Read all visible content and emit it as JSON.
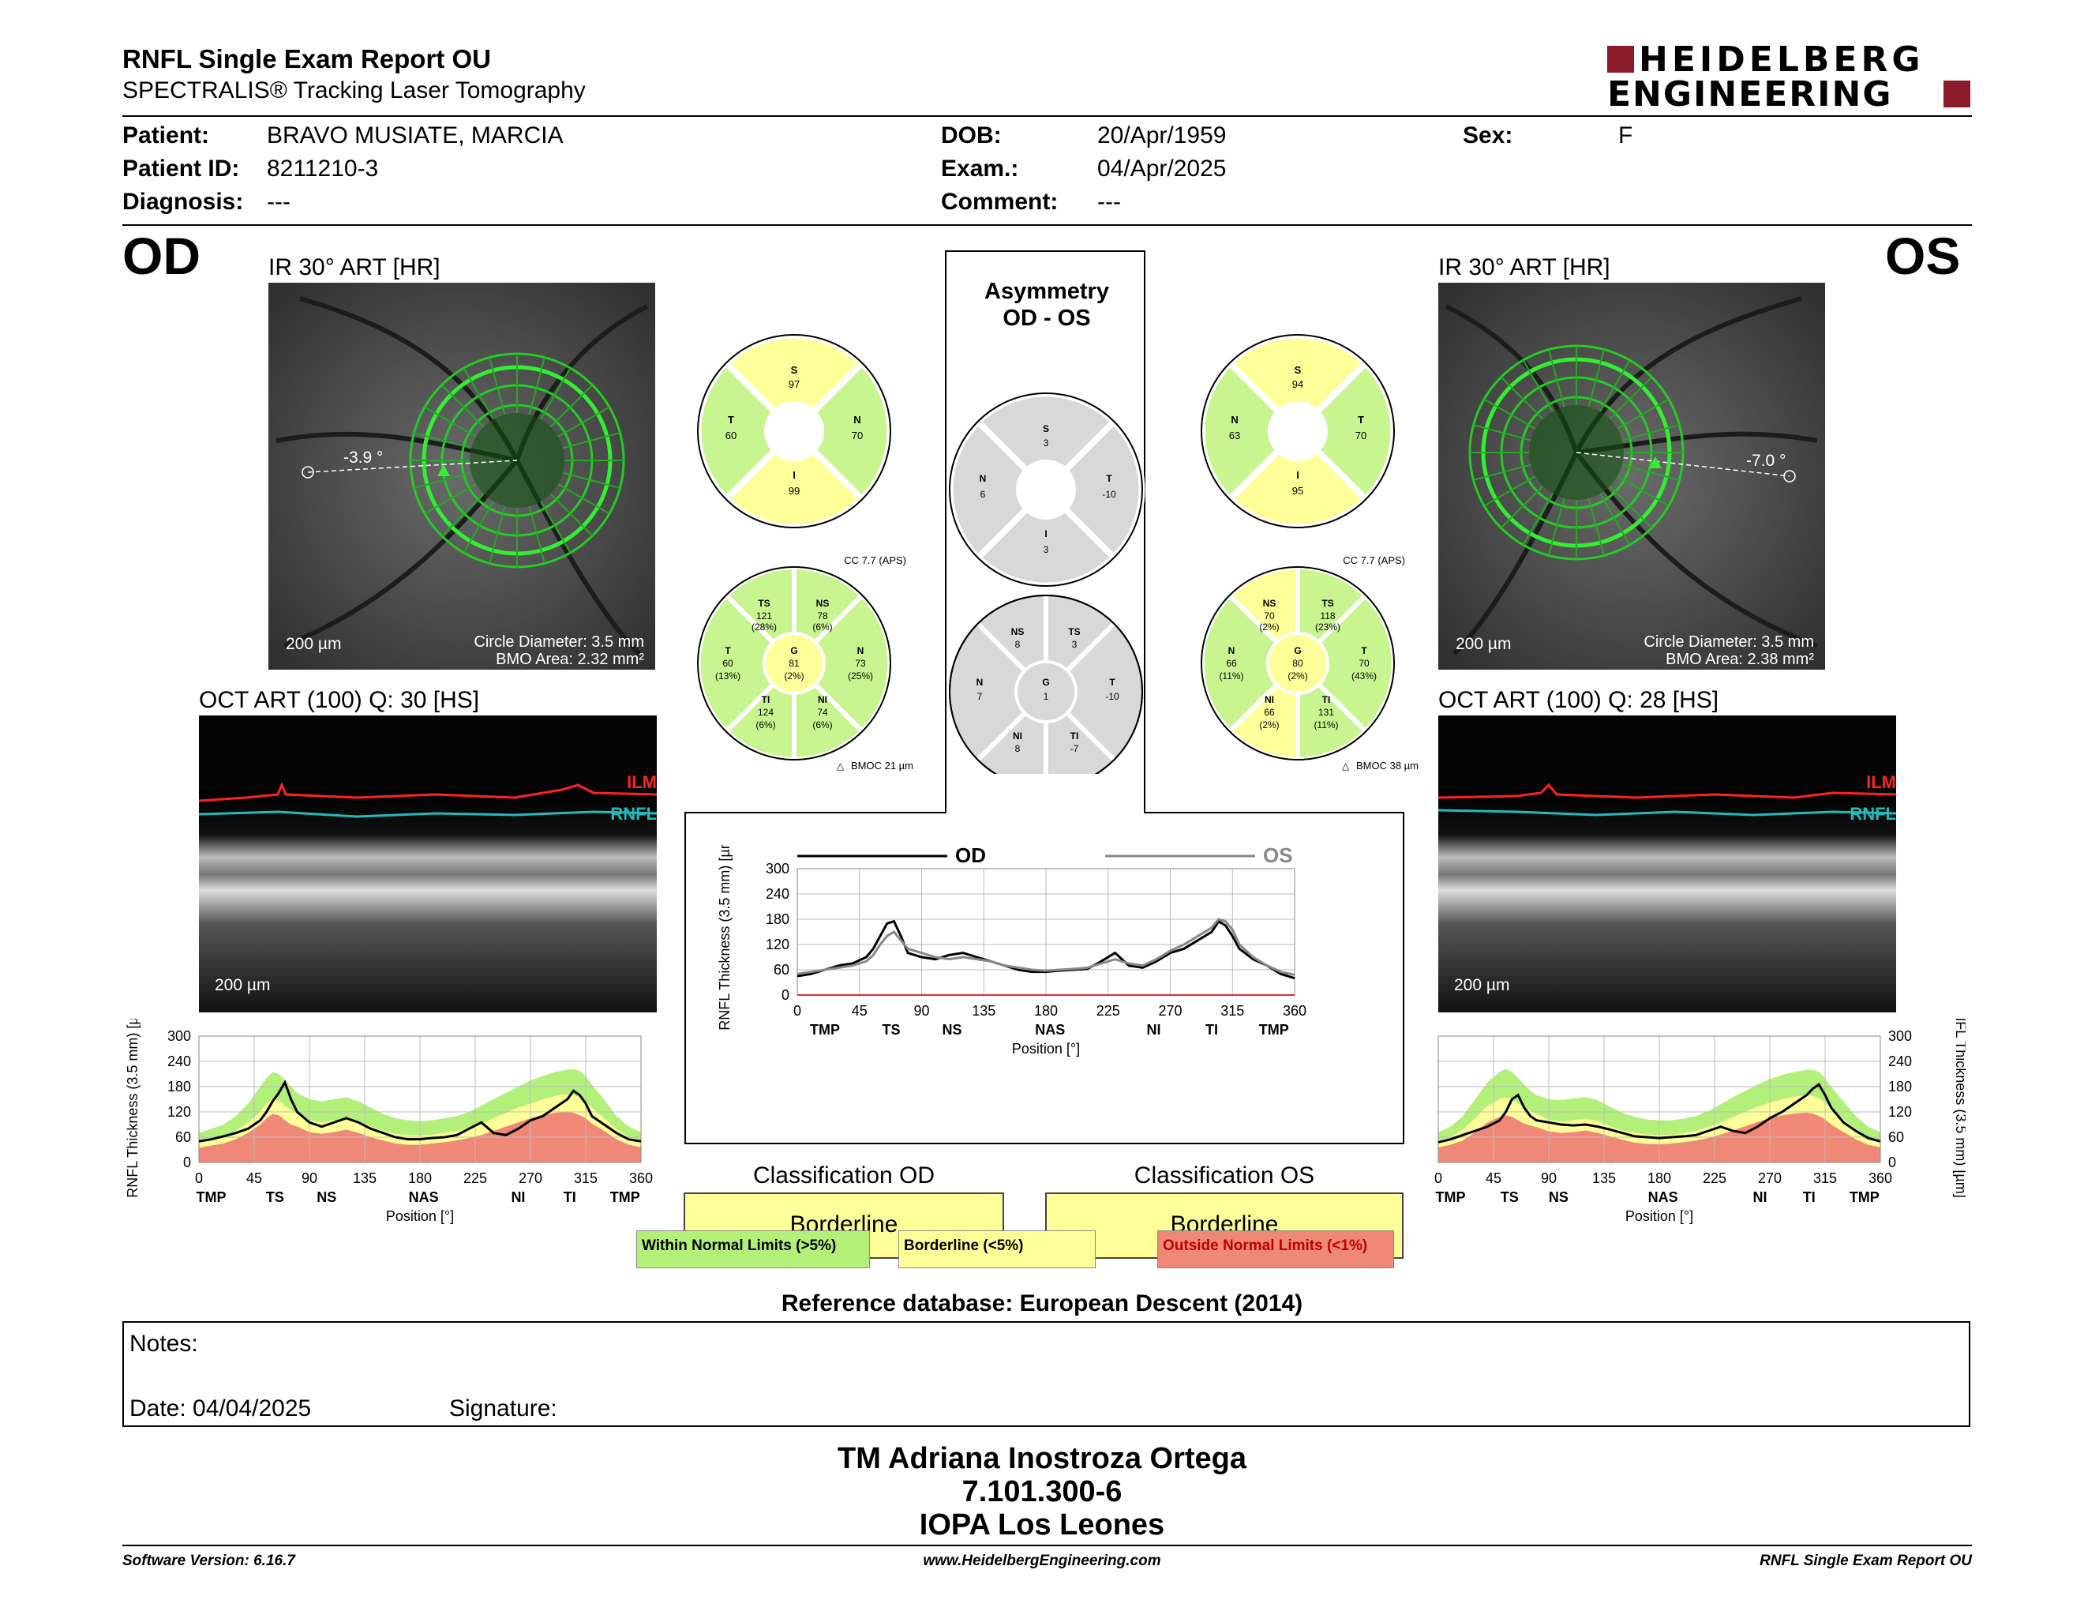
{
  "header": {
    "title": "RNFL Single Exam Report OU",
    "subtitle": "SPECTRALIS® Tracking Laser Tomography",
    "brand_line1": "HEIDELBERG",
    "brand_line2": "ENGINEERING",
    "brand_color": "#8b1a2b"
  },
  "patient": {
    "patient_label": "Patient:",
    "patient_value": "BRAVO MUSIATE, MARCIA",
    "id_label": "Patient ID:",
    "id_value": "8211210-3",
    "diag_label": "Diagnosis:",
    "diag_value": "---",
    "dob_label": "DOB:",
    "dob_value": "20/Apr/1959",
    "exam_label": "Exam.:",
    "exam_value": "04/Apr/2025",
    "comment_label": "Comment:",
    "comment_value": "---",
    "sex_label": "Sex:",
    "sex_value": "F"
  },
  "od": {
    "eye": "OD",
    "ir_title": "IR 30° ART [HR]",
    "angle": "-3.9 °",
    "circle_diameter": "Circle Diameter: 3.5 mm",
    "bmo_area": "BMO Area: 2.32 mm²",
    "scale": "200 µm",
    "oct_title": "OCT ART (100) Q: 30 [HS]",
    "ilm": "ILM",
    "rnfl": "RNFL",
    "quad": {
      "S": "97",
      "T": "60",
      "N": "70",
      "I": "99"
    },
    "cc": "CC 7.7 (APS)",
    "sectors": {
      "TS": [
        "121",
        "(28%)"
      ],
      "NS": [
        "78",
        "(6%)"
      ],
      "T": [
        "60",
        "(13%)"
      ],
      "G": [
        "81",
        "(2%)"
      ],
      "N": [
        "73",
        "(25%)"
      ],
      "TI": [
        "124",
        "(6%)"
      ],
      "NI": [
        "74",
        "(6%)"
      ]
    },
    "bmoc": "BMOC 21 µm"
  },
  "os": {
    "eye": "OS",
    "ir_title": "IR 30° ART [HR]",
    "angle": "-7.0 °",
    "circle_diameter": "Circle Diameter: 3.5 mm",
    "bmo_area": "BMO Area: 2.38 mm²",
    "scale": "200 µm",
    "oct_title": "OCT ART (100) Q: 28 [HS]",
    "ilm": "ILM",
    "rnfl": "RNFL",
    "quad": {
      "S": "94",
      "N": "63",
      "T": "70",
      "I": "95"
    },
    "cc": "CC 7.7 (APS)",
    "sectors": {
      "NS": [
        "70",
        "(2%)"
      ],
      "TS": [
        "118",
        "(23%)"
      ],
      "N": [
        "66",
        "(11%)"
      ],
      "G": [
        "80",
        "(2%)"
      ],
      "T": [
        "70",
        "(43%)"
      ],
      "NI": [
        "66",
        "(2%)"
      ],
      "TI": [
        "131",
        "(11%)"
      ]
    },
    "bmoc": "BMOC 38 µm"
  },
  "asym": {
    "title1": "Asymmetry",
    "title2": "OD - OS",
    "quad": {
      "S": "3",
      "N": "6",
      "T": "-10",
      "I": "3"
    },
    "sectors": {
      "NS": "8",
      "TS": "3",
      "N": "7",
      "G": "1",
      "T": "-10",
      "NI": "8",
      "TI": "-7"
    }
  },
  "classification": {
    "od_label": "Classification OD",
    "os_label": "Classification OS",
    "od_value": "Borderline",
    "os_value": "Borderline",
    "wnl": "Within Normal Limits (>5%)",
    "bl": "Borderline (<5%)",
    "onl": "Outside Normal Limits (<1%)",
    "colors": {
      "wnl": "#b3f07a",
      "bl": "#ffff99",
      "onl": "#f08878"
    }
  },
  "reference": "Reference database: European Descent (2014)",
  "notes": {
    "label": "Notes:",
    "date": "Date: 04/04/2025",
    "signature": "Signature:"
  },
  "signer": {
    "name": "TM Adriana Inostroza Ortega",
    "id": "7.101.300-6",
    "org": "IOPA Los Leones"
  },
  "footer": {
    "left": "Software Version: 6.16.7",
    "center": "www.HeidelbergEngineering.com",
    "right": "RNFL Single Exam Report OU"
  },
  "chart_data": [
    {
      "type": "line",
      "title": "OD",
      "ylabel": "RNFL Thickness (3.5 mm) [µm]",
      "xlabel": "Position [°]",
      "xlim": [
        0,
        360
      ],
      "ylim": [
        0,
        300
      ],
      "xticks": [
        0,
        45,
        90,
        135,
        180,
        225,
        270,
        315,
        360
      ],
      "yticks": [
        0,
        60,
        120,
        180,
        240,
        300
      ],
      "region_labels": [
        [
          "TMP",
          10
        ],
        [
          "TS",
          62
        ],
        [
          "NS",
          104
        ],
        [
          "NAS",
          183
        ],
        [
          "NI",
          260
        ],
        [
          "TI",
          302
        ],
        [
          "TMP",
          347
        ]
      ],
      "series": [
        {
          "name": "OD",
          "x": [
            0,
            10,
            20,
            30,
            40,
            50,
            55,
            60,
            65,
            70,
            75,
            80,
            90,
            100,
            110,
            120,
            130,
            140,
            150,
            160,
            170,
            180,
            190,
            200,
            210,
            220,
            230,
            240,
            250,
            260,
            270,
            280,
            290,
            300,
            305,
            310,
            315,
            320,
            330,
            340,
            350,
            360
          ],
          "y": [
            50,
            55,
            62,
            70,
            80,
            100,
            120,
            145,
            165,
            190,
            150,
            120,
            95,
            85,
            95,
            105,
            95,
            80,
            70,
            60,
            55,
            55,
            58,
            60,
            65,
            80,
            95,
            70,
            65,
            80,
            100,
            110,
            130,
            150,
            170,
            160,
            140,
            110,
            90,
            70,
            55,
            50
          ]
        }
      ],
      "normal_band_top": [
        70,
        80,
        90,
        110,
        140,
        180,
        200,
        215,
        210,
        195,
        180,
        165,
        150,
        145,
        150,
        155,
        145,
        130,
        115,
        105,
        100,
        98,
        100,
        105,
        110,
        120,
        135,
        150,
        165,
        180,
        195,
        205,
        215,
        220,
        222,
        218,
        205,
        185,
        150,
        110,
        85,
        72
      ],
      "borderline_top": [
        50,
        55,
        60,
        75,
        95,
        120,
        140,
        150,
        148,
        135,
        125,
        115,
        100,
        95,
        100,
        105,
        98,
        85,
        75,
        68,
        65,
        64,
        66,
        70,
        75,
        82,
        92,
        105,
        118,
        130,
        140,
        150,
        158,
        162,
        160,
        155,
        145,
        130,
        105,
        80,
        60,
        52
      ],
      "outside_top": [
        35,
        40,
        45,
        55,
        70,
        90,
        105,
        115,
        112,
        100,
        90,
        85,
        72,
        68,
        72,
        78,
        70,
        60,
        52,
        45,
        42,
        42,
        45,
        48,
        52,
        58,
        65,
        75,
        85,
        95,
        105,
        112,
        118,
        120,
        118,
        112,
        105,
        92,
        75,
        55,
        42,
        36
      ]
    },
    {
      "type": "line",
      "title": "OD vs OS",
      "ylabel": "RNFL Thickness (3.5 mm) [µm]",
      "xlabel": "Position [°]",
      "xlim": [
        0,
        360
      ],
      "ylim": [
        0,
        300
      ],
      "xticks": [
        0,
        45,
        90,
        135,
        180,
        225,
        270,
        315,
        360
      ],
      "yticks": [
        0,
        60,
        120,
        180,
        240,
        300
      ],
      "region_labels": [
        [
          "TMP",
          20
        ],
        [
          "TS",
          68
        ],
        [
          "NS",
          112
        ],
        [
          "NAS",
          183
        ],
        [
          "NI",
          258
        ],
        [
          "TI",
          300
        ],
        [
          "TMP",
          345
        ]
      ],
      "series": [
        {
          "name": "OD",
          "x": [
            0,
            10,
            20,
            30,
            40,
            50,
            55,
            60,
            65,
            70,
            75,
            80,
            90,
            100,
            110,
            120,
            130,
            140,
            150,
            160,
            170,
            180,
            190,
            200,
            210,
            220,
            230,
            240,
            250,
            260,
            270,
            280,
            290,
            300,
            305,
            310,
            315,
            320,
            330,
            340,
            350,
            360
          ],
          "y": [
            45,
            50,
            60,
            70,
            75,
            90,
            110,
            140,
            170,
            175,
            140,
            100,
            90,
            85,
            95,
            100,
            90,
            80,
            70,
            60,
            55,
            55,
            58,
            60,
            62,
            80,
            100,
            70,
            65,
            80,
            100,
            110,
            130,
            150,
            175,
            165,
            140,
            110,
            85,
            70,
            50,
            40
          ]
        },
        {
          "name": "OS",
          "x": [
            0,
            10,
            20,
            30,
            40,
            50,
            55,
            60,
            65,
            70,
            75,
            80,
            90,
            100,
            110,
            120,
            130,
            140,
            150,
            160,
            170,
            180,
            190,
            200,
            210,
            220,
            230,
            240,
            250,
            260,
            270,
            280,
            290,
            300,
            305,
            310,
            315,
            320,
            330,
            340,
            350,
            360
          ],
          "y": [
            50,
            55,
            60,
            65,
            70,
            80,
            95,
            120,
            140,
            150,
            130,
            110,
            100,
            90,
            85,
            90,
            85,
            80,
            70,
            65,
            60,
            58,
            60,
            62,
            65,
            75,
            85,
            75,
            70,
            85,
            105,
            120,
            140,
            160,
            180,
            175,
            155,
            120,
            90,
            70,
            55,
            48
          ]
        }
      ]
    },
    {
      "type": "line",
      "title": "OS",
      "ylabel": "RNFL Thickness (3.5 mm) [µm]",
      "xlabel": "Position [°]",
      "xlim": [
        0,
        360
      ],
      "ylim": [
        0,
        300
      ],
      "xticks": [
        0,
        45,
        90,
        135,
        180,
        225,
        270,
        315,
        360
      ],
      "yticks": [
        0,
        60,
        120,
        180,
        240,
        300
      ],
      "region_labels": [
        [
          "TMP",
          10
        ],
        [
          "TS",
          58
        ],
        [
          "NS",
          98
        ],
        [
          "NAS",
          183
        ],
        [
          "NI",
          262
        ],
        [
          "TI",
          302
        ],
        [
          "TMP",
          347
        ]
      ],
      "series": [
        {
          "name": "OS",
          "x": [
            0,
            10,
            20,
            30,
            40,
            50,
            55,
            60,
            65,
            70,
            75,
            80,
            90,
            100,
            110,
            120,
            130,
            140,
            150,
            160,
            170,
            180,
            190,
            200,
            210,
            220,
            230,
            240,
            250,
            260,
            270,
            280,
            290,
            300,
            305,
            310,
            315,
            320,
            330,
            340,
            350,
            360
          ],
          "y": [
            48,
            55,
            65,
            75,
            85,
            100,
            120,
            150,
            160,
            130,
            110,
            100,
            95,
            90,
            88,
            90,
            85,
            78,
            70,
            62,
            60,
            58,
            60,
            62,
            65,
            75,
            85,
            75,
            70,
            85,
            105,
            120,
            140,
            160,
            175,
            185,
            160,
            130,
            95,
            75,
            58,
            50
          ]
        }
      ],
      "normal_band_top": [
        72,
        85,
        110,
        150,
        190,
        215,
        222,
        215,
        200,
        185,
        170,
        160,
        150,
        148,
        152,
        155,
        148,
        132,
        118,
        108,
        102,
        100,
        100,
        104,
        110,
        122,
        138,
        155,
        170,
        185,
        198,
        208,
        215,
        220,
        220,
        215,
        200,
        180,
        145,
        110,
        85,
        72
      ],
      "borderline_top": [
        52,
        60,
        78,
        105,
        135,
        150,
        155,
        150,
        140,
        130,
        122,
        115,
        102,
        96,
        100,
        104,
        98,
        86,
        76,
        70,
        66,
        65,
        66,
        70,
        75,
        84,
        95,
        108,
        120,
        132,
        142,
        150,
        156,
        160,
        158,
        152,
        142,
        128,
        102,
        80,
        60,
        52
      ],
      "outside_top": [
        36,
        42,
        52,
        72,
        95,
        108,
        112,
        108,
        100,
        92,
        88,
        84,
        74,
        70,
        72,
        76,
        70,
        62,
        54,
        47,
        44,
        43,
        45,
        48,
        52,
        58,
        66,
        76,
        86,
        96,
        105,
        112,
        116,
        118,
        116,
        110,
        102,
        90,
        72,
        55,
        42,
        36
      ]
    }
  ]
}
